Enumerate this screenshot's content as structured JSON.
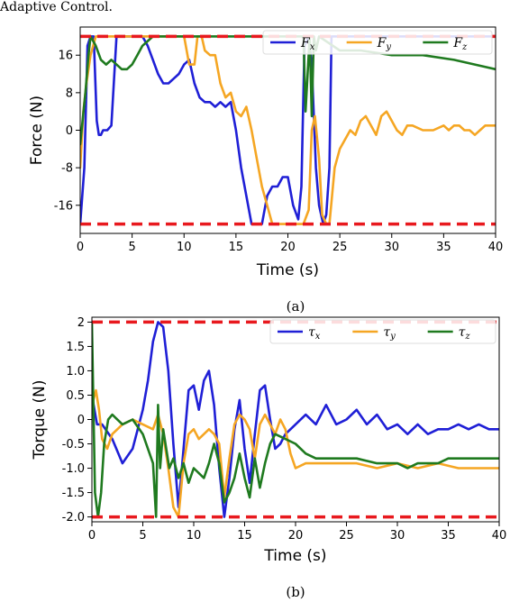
{
  "header_fragment": "Adaptive Control.",
  "chart_data": [
    {
      "type": "line",
      "caption": "(a)",
      "xlabel": "Time (s)",
      "ylabel": "Force (N)",
      "xlim": [
        0,
        40
      ],
      "ylim": [
        -22,
        22
      ],
      "xticks": [
        0,
        5,
        10,
        15,
        20,
        25,
        30,
        35,
        40
      ],
      "yticks": [
        -16,
        -8,
        0,
        8,
        16
      ],
      "ytick_labels": [
        "-16",
        "-8",
        "0",
        "8",
        "16"
      ],
      "grid": false,
      "legend_position": "top-right",
      "limits": [
        20,
        -20
      ],
      "series": [
        {
          "name": "F_x",
          "label_main": "F",
          "label_sub": "x",
          "color": "#1f1fd6",
          "x": [
            0,
            0.4,
            0.7,
            1.0,
            1.3,
            1.6,
            1.8,
            2.0,
            2.2,
            2.6,
            3.0,
            3.5,
            4.0,
            4.5,
            5.0,
            5.5,
            6.0,
            6.5,
            7.0,
            7.5,
            8.0,
            8.5,
            9.0,
            9.5,
            10.0,
            10.5,
            11.0,
            11.5,
            12.0,
            12.5,
            13.0,
            13.5,
            14.0,
            14.5,
            15.0,
            15.5,
            16.0,
            16.5,
            17.0,
            17.5,
            18.0,
            18.5,
            19.0,
            19.5,
            20.0,
            20.5,
            21.0,
            21.3,
            21.6,
            22.0,
            22.3,
            22.7,
            23.0,
            23.4,
            23.7,
            24.0,
            24.2,
            40
          ],
          "values": [
            -20,
            -8,
            18,
            20,
            20,
            2,
            -1,
            -1,
            0,
            0,
            1,
            20,
            20,
            20,
            20,
            20,
            20,
            18,
            15,
            12,
            10,
            10,
            11,
            12,
            14,
            15,
            10,
            7,
            6,
            6,
            5,
            6,
            5,
            6,
            0,
            -8,
            -14,
            -20,
            -20,
            -20,
            -14,
            -12,
            -12,
            -10,
            -10,
            -16,
            -19,
            -12,
            18,
            20,
            14,
            -8,
            -16,
            -20,
            -18,
            -8,
            20,
            20
          ]
        },
        {
          "name": "F_y",
          "label_main": "F",
          "label_sub": "y",
          "color": "#f5a623",
          "x": [
            0,
            0.3,
            0.6,
            1.0,
            1.5,
            2.0,
            5,
            10,
            10.5,
            11.0,
            11.3,
            11.7,
            12.0,
            12.5,
            13.0,
            13.5,
            14.0,
            14.5,
            15.0,
            15.5,
            16.0,
            16.5,
            17.0,
            17.5,
            18.0,
            18.5,
            19.0,
            19.5,
            20.0,
            20.5,
            21.0,
            21.5,
            22.0,
            22.3,
            22.6,
            23.0,
            23.3,
            23.7,
            24.0,
            24.5,
            25.0,
            25.5,
            26.0,
            26.5,
            27.0,
            27.5,
            28.0,
            28.5,
            29.0,
            29.5,
            30.0,
            30.5,
            31.0,
            31.5,
            32.0,
            33.0,
            34.0,
            35.0,
            35.5,
            36.0,
            36.5,
            37.0,
            37.5,
            38.0,
            38.5,
            39.0,
            40.0
          ],
          "values": [
            -8,
            4,
            10,
            16,
            20,
            20,
            20,
            20,
            14,
            14,
            20,
            20,
            17,
            16,
            16,
            10,
            7,
            8,
            4,
            3,
            5,
            0,
            -6,
            -12,
            -16,
            -20,
            -20,
            -20,
            -20,
            -20,
            -20,
            -20,
            -17,
            0,
            3,
            -6,
            -18,
            -20,
            -20,
            -8,
            -4,
            -2,
            0,
            -1,
            2,
            3,
            1,
            -1,
            3,
            4,
            2,
            0,
            -1,
            1,
            1,
            0,
            0,
            1,
            0,
            1,
            1,
            0,
            0,
            -1,
            0,
            1,
            1
          ]
        },
        {
          "name": "F_z",
          "label_main": "F",
          "label_sub": "z",
          "color": "#1f7a1f",
          "x": [
            0,
            0.5,
            0.8,
            1.0,
            1.5,
            2.0,
            2.5,
            3.0,
            3.5,
            4.0,
            4.5,
            5.0,
            5.5,
            6.0,
            6.5,
            7.0,
            7.5,
            8,
            21.5,
            21.7,
            21.9,
            22.1,
            22.3,
            22.5,
            22.7,
            23,
            25,
            27,
            30,
            33,
            36,
            38,
            40
          ],
          "values": [
            -3,
            8,
            16,
            20,
            18,
            15,
            14,
            15,
            14,
            13,
            13,
            14,
            16,
            18,
            19,
            20,
            20,
            20,
            20,
            4,
            12,
            20,
            3,
            20,
            17,
            20,
            17,
            17,
            16,
            16,
            15,
            14,
            13
          ]
        }
      ]
    },
    {
      "type": "line",
      "caption": "(b)",
      "xlabel": "Time (s)",
      "ylabel": "Torque (N)",
      "xlim": [
        0,
        40
      ],
      "ylim": [
        -2.1,
        2.1
      ],
      "xticks": [
        0,
        5,
        10,
        15,
        20,
        25,
        30,
        35,
        40
      ],
      "yticks": [
        -2.0,
        -1.5,
        -1.0,
        -0.5,
        0,
        0.5,
        1.0,
        1.5,
        2.0
      ],
      "ytick_labels": [
        "-2.0",
        "-1.5",
        "-1.0",
        "-0.5",
        "0",
        "0.5",
        "1.0",
        "1.5",
        "2"
      ],
      "grid": false,
      "legend_position": "top-right",
      "limits": [
        2.0,
        -2.0
      ],
      "series": [
        {
          "name": "τ_x",
          "label_main": "τ",
          "label_sub": "x",
          "color": "#1f1fd6",
          "x": [
            0,
            0.5,
            1,
            2,
            3,
            4,
            5,
            5.5,
            6,
            6.5,
            7,
            7.5,
            8,
            8.5,
            9,
            9.5,
            10,
            10.5,
            11,
            11.5,
            12,
            12.5,
            13,
            13.5,
            14,
            14.5,
            15,
            15.5,
            16,
            16.5,
            17,
            17.5,
            18,
            18.5,
            19,
            19.5,
            20,
            21,
            22,
            23,
            24,
            25,
            26,
            27,
            28,
            29,
            30,
            31,
            32,
            33,
            34,
            35,
            36,
            37,
            38,
            39,
            40
          ],
          "values": [
            0.5,
            -0.1,
            -0.1,
            -0.4,
            -0.9,
            -0.6,
            0.2,
            0.8,
            1.6,
            2.0,
            1.9,
            1.0,
            -0.5,
            -1.8,
            -0.6,
            0.6,
            0.7,
            0.2,
            0.8,
            1.0,
            0.3,
            -1.0,
            -2.0,
            -1.2,
            -0.2,
            0.4,
            -0.6,
            -1.3,
            -0.3,
            0.6,
            0.7,
            0.0,
            -0.6,
            -0.5,
            -0.3,
            -0.2,
            -0.1,
            0.1,
            -0.1,
            0.3,
            -0.1,
            0.0,
            0.2,
            -0.1,
            0.1,
            -0.2,
            -0.1,
            -0.3,
            -0.1,
            -0.3,
            -0.2,
            -0.2,
            -0.1,
            -0.2,
            -0.1,
            -0.2,
            -0.2
          ]
        },
        {
          "name": "τ_y",
          "label_main": "τ",
          "label_sub": "y",
          "color": "#f5a623",
          "x": [
            0,
            0.4,
            0.7,
            1,
            1.5,
            2,
            3,
            4,
            5,
            6,
            6.5,
            7,
            7.5,
            8,
            8.5,
            9,
            9.5,
            10,
            10.5,
            11,
            11.5,
            12,
            12.5,
            13,
            13.5,
            14,
            14.5,
            15,
            15.5,
            16,
            16.5,
            17,
            17.5,
            18,
            18.5,
            19,
            19.5,
            20,
            21,
            22,
            24,
            26,
            28,
            30,
            32,
            34,
            36,
            38,
            40
          ],
          "values": [
            0.3,
            0.6,
            0.2,
            -0.4,
            -0.6,
            -0.3,
            -0.1,
            0.0,
            -0.1,
            -0.2,
            0.1,
            -0.3,
            -1.0,
            -1.8,
            -2.0,
            -0.9,
            -0.3,
            -0.2,
            -0.4,
            -0.3,
            -0.2,
            -0.3,
            -0.5,
            -1.6,
            -0.8,
            -0.1,
            0.1,
            0.0,
            -0.2,
            -0.8,
            -0.1,
            0.1,
            -0.1,
            -0.3,
            0.0,
            -0.2,
            -0.7,
            -1.0,
            -0.9,
            -0.9,
            -0.9,
            -0.9,
            -1.0,
            -0.9,
            -1.0,
            -0.9,
            -1.0,
            -1.0,
            -1.0
          ]
        },
        {
          "name": "τ_z",
          "label_main": "τ",
          "label_sub": "z",
          "color": "#1f7a1f",
          "x": [
            0,
            0.3,
            0.6,
            0.9,
            1.2,
            1.6,
            2,
            3,
            4,
            5,
            6,
            6.3,
            6.5,
            6.7,
            7,
            7.3,
            7.6,
            8,
            8.5,
            9,
            9.5,
            10,
            11,
            11.5,
            12,
            12.5,
            13,
            13.5,
            14,
            14.5,
            15,
            15.5,
            16,
            16.5,
            17,
            17.5,
            18,
            19,
            20,
            21,
            22,
            23,
            24,
            25,
            26,
            28,
            30,
            31,
            32,
            34,
            35,
            36,
            38,
            40
          ],
          "values": [
            2.0,
            -1.5,
            -2.0,
            -1.5,
            -0.5,
            0.0,
            0.1,
            -0.1,
            0.0,
            -0.3,
            -0.9,
            -2.0,
            0.3,
            -1.0,
            -0.2,
            -0.6,
            -1.0,
            -0.8,
            -1.2,
            -0.9,
            -1.3,
            -1.0,
            -1.2,
            -0.9,
            -0.5,
            -0.9,
            -1.7,
            -1.5,
            -1.2,
            -0.7,
            -1.2,
            -1.6,
            -0.8,
            -1.4,
            -0.9,
            -0.5,
            -0.3,
            -0.4,
            -0.5,
            -0.7,
            -0.8,
            -0.8,
            -0.8,
            -0.8,
            -0.8,
            -0.9,
            -0.9,
            -1.0,
            -0.9,
            -0.9,
            -0.8,
            -0.8,
            -0.8,
            -0.8
          ]
        }
      ]
    }
  ]
}
